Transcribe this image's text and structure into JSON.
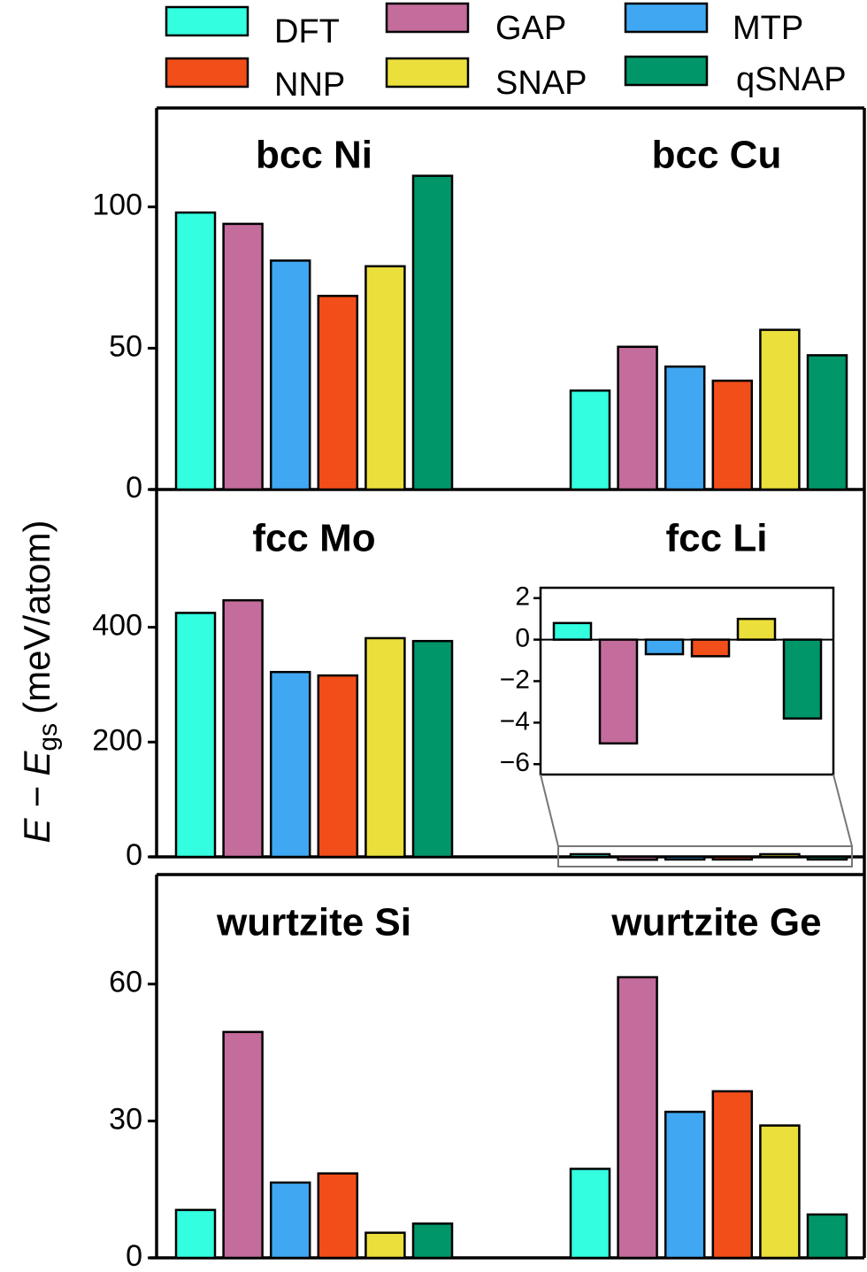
{
  "legend": {
    "items": [
      {
        "name": "DFT",
        "color": "#33ffe0"
      },
      {
        "name": "GAP",
        "color": "#c46c9c"
      },
      {
        "name": "MTP",
        "color": "#40a8f2"
      },
      {
        "name": "NNP",
        "color": "#f24e1a"
      },
      {
        "name": "SNAP",
        "color": "#ebdf3c"
      },
      {
        "name": "qSNAP",
        "color": "#00966a"
      }
    ]
  },
  "ylabel": {
    "main": "E − E",
    "subscript": "gs",
    "unit": "(meV/atom)"
  },
  "chart_data": [
    {
      "type": "bar",
      "row": 1,
      "ylim": [
        0,
        135
      ],
      "yticks": [
        0,
        50,
        100
      ],
      "groups": [
        {
          "title": "bcc Ni",
          "values": [
            98,
            94,
            81,
            68.5,
            79,
            111
          ]
        },
        {
          "title": "bcc Cu",
          "values": [
            35,
            50.5,
            43.5,
            38.5,
            56.5,
            47.5
          ]
        }
      ]
    },
    {
      "type": "bar",
      "row": 2,
      "ylim": [
        0,
        640
      ],
      "yticks": [
        0,
        200,
        400
      ],
      "groups": [
        {
          "title": "fcc Mo",
          "values": [
            425,
            447,
            322,
            316,
            381,
            376
          ]
        },
        {
          "title": "fcc Li",
          "values": [
            0.8,
            -5,
            -0.7,
            -0.8,
            1,
            -3.8
          ]
        }
      ],
      "inset": {
        "group": "fcc Li",
        "ylim": [
          -6.5,
          2.5
        ],
        "yticks": [
          -6,
          -4,
          -2,
          0,
          2
        ]
      }
    },
    {
      "type": "bar",
      "row": 3,
      "ylim": [
        0,
        84
      ],
      "yticks": [
        0,
        30,
        60
      ],
      "groups": [
        {
          "title": "wurtzite Si",
          "values": [
            10.5,
            49.5,
            16.5,
            18.5,
            5.5,
            7.5
          ]
        },
        {
          "title": "wurtzite Ge",
          "values": [
            19.5,
            61.5,
            32,
            36.5,
            29,
            9.5
          ]
        }
      ]
    }
  ]
}
